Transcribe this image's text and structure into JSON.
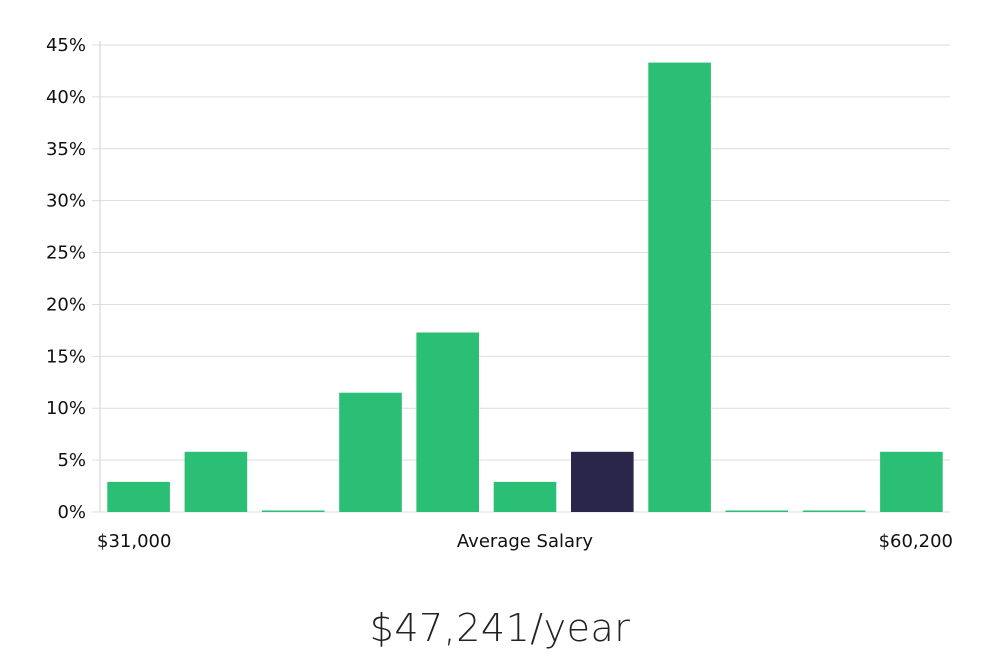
{
  "colors": {
    "bar": "#2abf74",
    "highlight": "#29264a",
    "grid": "#dddddd",
    "axis": "#cfcfcf"
  },
  "chart_data": {
    "type": "bar",
    "title": "",
    "xlabel": "Average Salary",
    "ylabel": "",
    "x_start_label": "$31,000",
    "x_end_label": "$60,200",
    "ylim": [
      0,
      45
    ],
    "yticks": [
      0,
      5,
      10,
      15,
      20,
      25,
      30,
      35,
      40,
      45
    ],
    "ytick_labels": [
      "0%",
      "5%",
      "10%",
      "15%",
      "20%",
      "25%",
      "30%",
      "35%",
      "40%",
      "45%"
    ],
    "values": [
      2.9,
      5.8,
      0,
      11.5,
      17.3,
      2.9,
      5.8,
      43.3,
      0,
      0,
      5.8
    ],
    "highlight_index": 6,
    "grid": true
  },
  "summary": {
    "average_salary": "$47,241/year"
  }
}
